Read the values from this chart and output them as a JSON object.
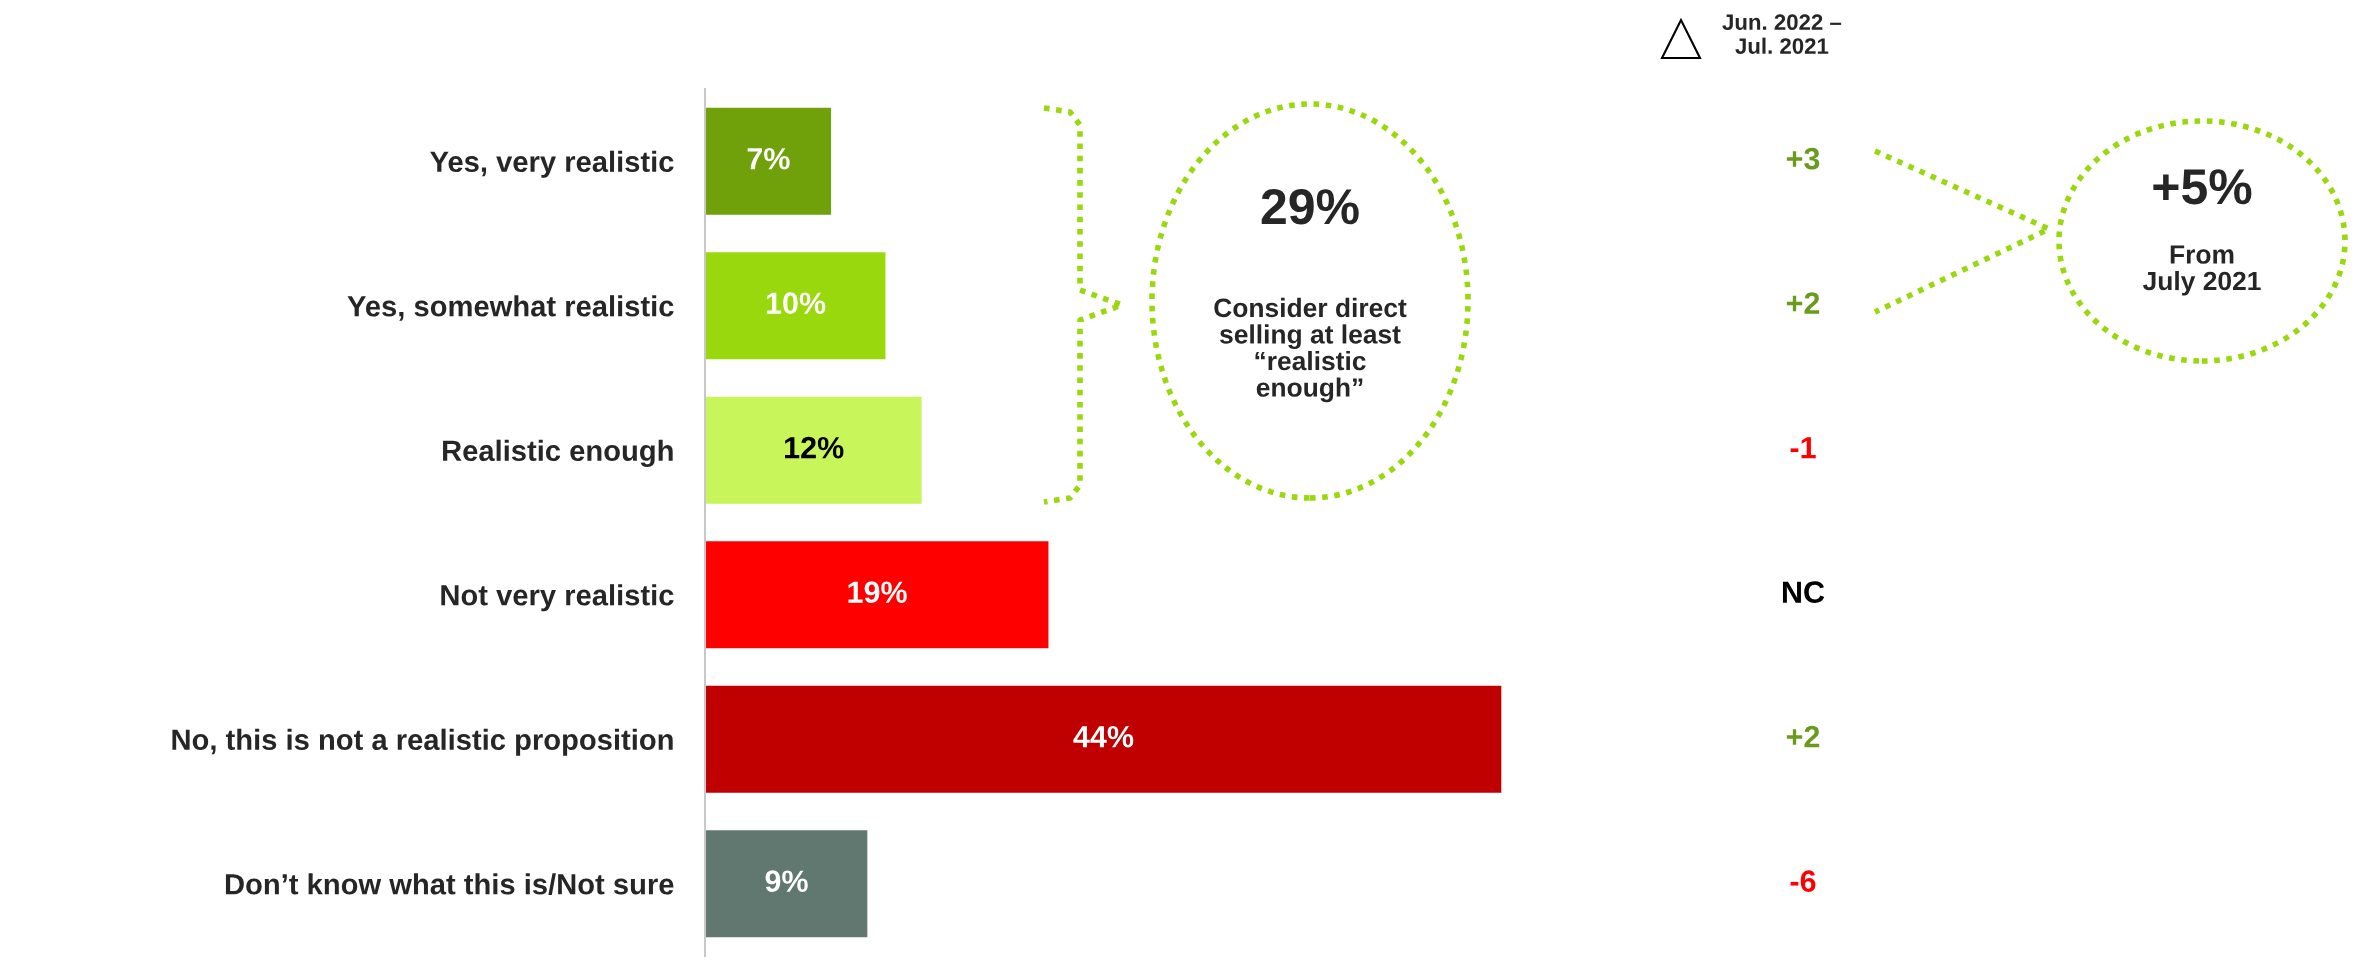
{
  "chart_data": {
    "type": "bar",
    "orientation": "horizontal",
    "categories": [
      "Yes, very realistic",
      "Yes, somewhat realistic",
      "Realistic enough",
      "Not very realistic",
      "No, this is not a realistic proposition",
      "Don’t know what this is/Not sure"
    ],
    "values": [
      7,
      10,
      12,
      19,
      44,
      9
    ],
    "colors": [
      "#70a00a",
      "#99d80c",
      "#c8f55a",
      "#ff0000",
      "#c00000",
      "#607870"
    ],
    "value_labels": [
      "7%",
      "10%",
      "12%",
      "19%",
      "44%",
      "9%"
    ],
    "annotations": [
      "Jun. 2022 –\nJul. 2021",
      "+3",
      "+2",
      "-1",
      "NC",
      "+2",
      "-6",
      "29%",
      "Consider direct\nselling at least\n“realistic\nenough”",
      "+5%",
      "From\nJuly 2021"
    ]
  }
}
